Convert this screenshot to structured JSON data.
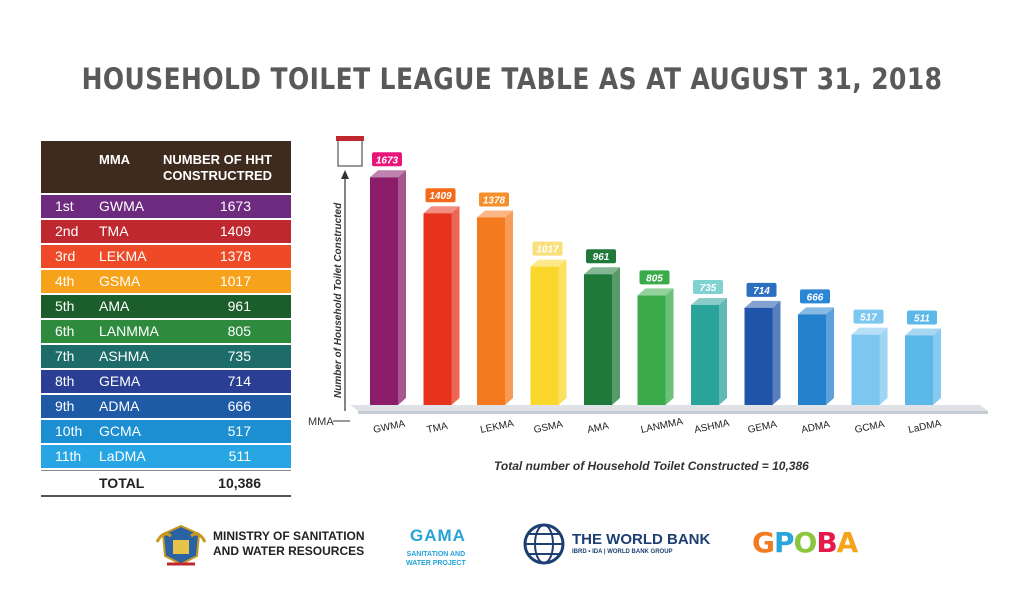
{
  "title": "HOUSEHOLD TOILET LEAGUE TABLE AS AT AUGUST 31, 2018",
  "table": {
    "header_mma": "MMA",
    "header_number": "NUMBER OF HHT\nCONSTRUCTRED",
    "rows": [
      {
        "rank": "1st",
        "mma": "GWMA",
        "value": "1673",
        "color": "#6e2a7f"
      },
      {
        "rank": "2nd",
        "mma": "TMA",
        "value": "1409",
        "color": "#c0282f"
      },
      {
        "rank": "3rd",
        "mma": "LEKMA",
        "value": "1378",
        "color": "#ee4a28"
      },
      {
        "rank": "4th",
        "mma": "GSMA",
        "value": "1017",
        "color": "#f7a21b"
      },
      {
        "rank": "5th",
        "mma": "AMA",
        "value": "961",
        "color": "#1b5e2b"
      },
      {
        "rank": "6th",
        "mma": "LANMMA",
        "value": "805",
        "color": "#2e8b3e"
      },
      {
        "rank": "7th",
        "mma": "ASHMA",
        "value": "735",
        "color": "#1e6c6a"
      },
      {
        "rank": "8th",
        "mma": "GEMA",
        "value": "714",
        "color": "#2a3f93"
      },
      {
        "rank": "9th",
        "mma": "ADMA",
        "value": "666",
        "color": "#1f5aa6"
      },
      {
        "rank": "10th",
        "mma": "GCMA",
        "value": "517",
        "color": "#1b8fd1"
      },
      {
        "rank": "11th",
        "mma": "LaDMA",
        "value": "511",
        "color": "#27a6e3"
      }
    ],
    "total_label": "TOTAL",
    "total_value": "10,386"
  },
  "chart_data": {
    "type": "bar",
    "categories": [
      "GWMA",
      "TMA",
      "LEKMA",
      "GSMA",
      "AMA",
      "LANMMA",
      "ASHMA",
      "GEMA",
      "ADMA",
      "GCMA",
      "LaDMA"
    ],
    "values": [
      1673,
      1409,
      1378,
      1017,
      961,
      805,
      735,
      714,
      666,
      517,
      511
    ],
    "bar_colors": [
      "#8b1d6b",
      "#e8331c",
      "#f57a1f",
      "#fbd72b",
      "#1f7a3a",
      "#3bab4a",
      "#2aa39a",
      "#1f54a8",
      "#2581cc",
      "#7cc7ef",
      "#5db8ea"
    ],
    "label_colors": [
      "#e8157b",
      "#f26a1b",
      "#f58f2a",
      "#f9e07a",
      "#1f7a3a",
      "#3bab4a",
      "#7fd2d0",
      "#2b6fc1",
      "#2b86d6",
      "#7cc7ef",
      "#5db8ea"
    ],
    "ylabel": "Number of Household Toilet Constructed",
    "xlabel": "MMA",
    "ylim": [
      0,
      1800
    ],
    "legend": "none",
    "grid": false
  },
  "chart_note": "Total number of Household Toilet Constructed = 10,386",
  "logos": {
    "ministry_line1": "MINISTRY OF SANITATION",
    "ministry_line2": "AND WATER RESOURCES",
    "gama": "GAMA",
    "gama_sub1": "SANITATION AND",
    "gama_sub2": "WATER PROJECT",
    "worldbank": "THE WORLD BANK",
    "worldbank_sub": "IBRD • IDA | WORLD BANK GROUP",
    "gpoba_letters": [
      "G",
      "P",
      "O",
      "B",
      "A"
    ],
    "gpoba_colors": [
      "#f27a21",
      "#2ba6dd",
      "#8cc63f",
      "#e6194b",
      "#f7a21b"
    ]
  }
}
